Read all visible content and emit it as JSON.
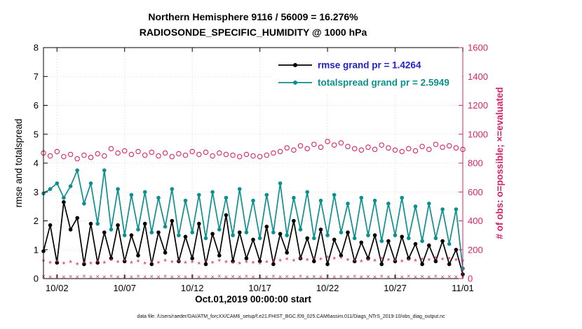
{
  "figure": {
    "footer_datafile": "data file: /Users/raeder/DAI/ATM_forcXX/CAM6_setup/f.e21.FHIST_BGC.f09_025.CAM6assim.011/Diags_NTrS_2019-10/obs_diag_output.nc"
  },
  "chart_data": {
    "type": "line",
    "title_line1": "Northern Hemisphere 9116 / 56009 = 16.276%",
    "title_line2": "RADIOSONDE_SPECIFIC_HUMIDITY @ 1000 hPa",
    "xlabel": "Oct.01,2019 00:00:00 start",
    "ylabel_left": "rmse and totalspread",
    "ylabel_right": "# of obs: o=possible; ×=evaluated",
    "xlim": [
      0,
      31
    ],
    "ylim_left": [
      0,
      8
    ],
    "ylim_right": [
      0,
      1600
    ],
    "yticks_left": [
      0,
      1,
      2,
      3,
      4,
      5,
      6,
      7,
      8
    ],
    "yticks_right": [
      0,
      200,
      400,
      600,
      800,
      1000,
      1200,
      1400,
      1600
    ],
    "xticks": [
      {
        "t": 1,
        "label": "10/02"
      },
      {
        "t": 6,
        "label": "10/07"
      },
      {
        "t": 11,
        "label": "10/12"
      },
      {
        "t": 16,
        "label": "10/17"
      },
      {
        "t": 21,
        "label": "10/22"
      },
      {
        "t": 26,
        "label": "10/27"
      },
      {
        "t": 31,
        "label": "11/01"
      }
    ],
    "x_start": 0,
    "x_step": 0.5,
    "grid": true,
    "legend_position": "inside-top-center-right",
    "colors": {
      "rmse": "#000000",
      "totalspread": "#0e8f8f",
      "obs": "#d62465",
      "grid": "#dadada",
      "axis": "#000000",
      "legend_rmse_text": "#2222cc",
      "legend_totalspread_text": "#0e8f8f"
    },
    "series": [
      {
        "name": "rmse",
        "legend_label": "rmse grand pr = 1.4264",
        "kind": "line",
        "axis": "left",
        "color": "#000000",
        "marker": "dot",
        "values": [
          0.95,
          1.85,
          0.55,
          2.65,
          1.7,
          2.1,
          0.5,
          1.9,
          0.55,
          1.6,
          0.7,
          1.85,
          0.6,
          1.5,
          0.8,
          1.9,
          0.5,
          1.6,
          0.9,
          2.0,
          0.6,
          1.45,
          0.7,
          1.9,
          0.5,
          1.55,
          0.8,
          2.2,
          0.6,
          1.6,
          0.7,
          1.35,
          0.6,
          1.8,
          0.5,
          1.55,
          0.9,
          2.0,
          0.7,
          1.4,
          0.6,
          1.7,
          0.5,
          1.35,
          0.8,
          1.6,
          0.6,
          1.25,
          0.7,
          1.5,
          0.5,
          1.3,
          0.6,
          1.45,
          0.7,
          1.2,
          0.5,
          1.15,
          0.6,
          1.3,
          0.5,
          1.0,
          0.15
        ]
      },
      {
        "name": "totalspread",
        "legend_label": "totalspread grand pr = 2.5949",
        "kind": "line",
        "axis": "left",
        "color": "#0e8f8f",
        "marker": "dot",
        "values": [
          2.95,
          3.1,
          3.3,
          2.8,
          3.2,
          3.75,
          2.6,
          3.3,
          1.9,
          3.75,
          1.7,
          3.1,
          1.5,
          2.9,
          1.7,
          3.0,
          1.6,
          2.8,
          1.8,
          3.1,
          1.5,
          2.7,
          1.6,
          2.9,
          1.4,
          3.0,
          1.7,
          2.8,
          1.5,
          3.1,
          1.6,
          2.7,
          1.4,
          2.9,
          1.6,
          3.3,
          1.5,
          2.8,
          1.7,
          3.0,
          1.4,
          2.7,
          1.5,
          2.9,
          1.6,
          2.6,
          1.4,
          2.8,
          1.5,
          2.7,
          1.3,
          2.6,
          1.5,
          2.8,
          1.4,
          2.5,
          1.3,
          2.6,
          1.4,
          2.4,
          1.2,
          2.4,
          0.35
        ]
      },
      {
        "name": "possible-obs",
        "kind": "scatter",
        "axis": "right",
        "color": "#d62465",
        "marker": "circle-open",
        "values": [
          870,
          850,
          880,
          845,
          860,
          830,
          855,
          840,
          865,
          850,
          900,
          870,
          885,
          860,
          880,
          855,
          875,
          850,
          870,
          845,
          865,
          855,
          880,
          860,
          875,
          850,
          870,
          860,
          855,
          845,
          860,
          850,
          845,
          855,
          870,
          880,
          905,
          890,
          920,
          900,
          930,
          910,
          950,
          925,
          940,
          915,
          900,
          890,
          910,
          895,
          925,
          905,
          890,
          880,
          900,
          885,
          915,
          895,
          930,
          910,
          920,
          905,
          895
        ]
      },
      {
        "name": "evaluated-obs",
        "kind": "scatter",
        "axis": "right",
        "color": "#d62465",
        "marker": "asterisk",
        "values": [
          120,
          105,
          115,
          100,
          110,
          95,
          105,
          100,
          115,
          105,
          125,
          110,
          120,
          105,
          115,
          100,
          110,
          105,
          120,
          110,
          115,
          105,
          110,
          100,
          115,
          105,
          120,
          110,
          105,
          100,
          110,
          105,
          100,
          110,
          115,
          120,
          130,
          120,
          135,
          125,
          140,
          130,
          145,
          135,
          140,
          125,
          120,
          115,
          125,
          120,
          135,
          125,
          120,
          115,
          125,
          120,
          130,
          125,
          140,
          130,
          135,
          125,
          120
        ]
      },
      {
        "name": "evaluated-obs-low",
        "kind": "scatter",
        "axis": "right",
        "color": "#d62465",
        "marker": "cross",
        "values": [
          15,
          12,
          16,
          13,
          15,
          12,
          16,
          13,
          15,
          12,
          16,
          13,
          15,
          12,
          16,
          13,
          15,
          12,
          16,
          13,
          15,
          12,
          16,
          13,
          15,
          12,
          16,
          13,
          15,
          12,
          16,
          13,
          15,
          12,
          16,
          13,
          15,
          12,
          16,
          13,
          15,
          12,
          16,
          13,
          15,
          12,
          16,
          13,
          15,
          12,
          16,
          13,
          15,
          12,
          16,
          13,
          15,
          12,
          16,
          13,
          15,
          12,
          16
        ]
      }
    ],
    "legend": [
      {
        "label": "rmse grand pr = 1.4264",
        "line_color": "#000000",
        "text_color": "#2222cc"
      },
      {
        "label": "totalspread grand pr = 2.5949",
        "line_color": "#0e8f8f",
        "text_color": "#0e8f8f"
      }
    ]
  }
}
